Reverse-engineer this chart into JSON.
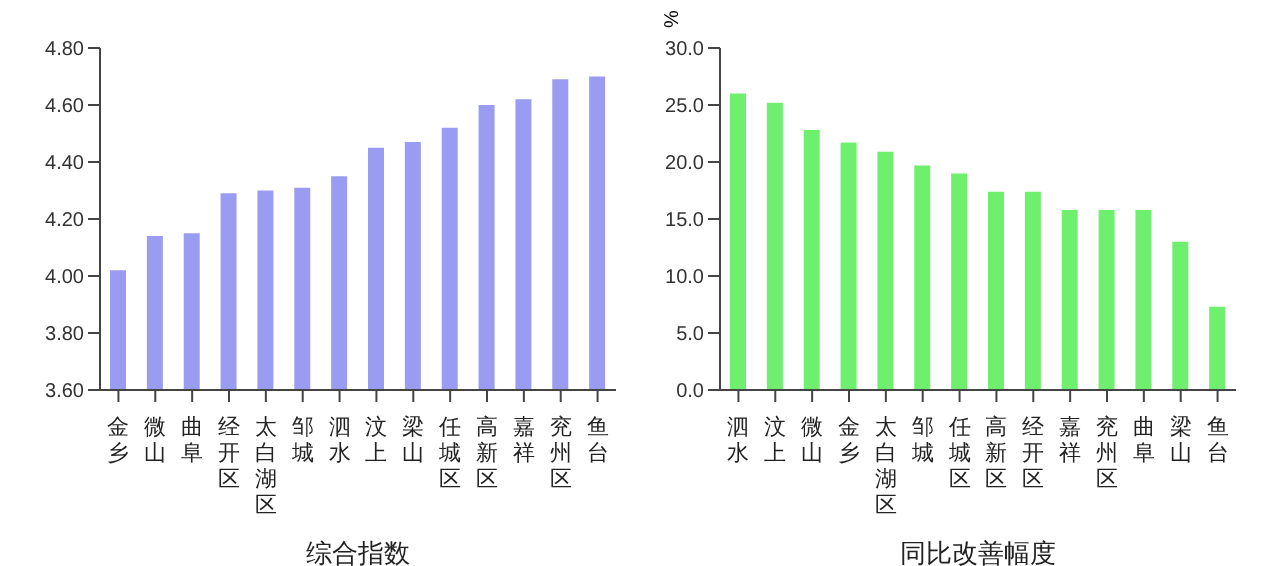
{
  "chart_data": [
    {
      "type": "bar",
      "xlabel": "综合指数",
      "categories": [
        "金乡",
        "微山",
        "曲阜",
        "经开区",
        "太白湖区",
        "邹城",
        "泗水",
        "汶上",
        "梁山",
        "任城区",
        "高新区",
        "嘉祥",
        "兖州区",
        "鱼台"
      ],
      "values": [
        4.02,
        4.14,
        4.15,
        4.29,
        4.3,
        4.31,
        4.35,
        4.45,
        4.47,
        4.52,
        4.6,
        4.62,
        4.69,
        4.7
      ],
      "color": "#9a9cf2",
      "ylim": [
        3.6,
        4.8
      ],
      "yticks": [
        {
          "value": 3.6,
          "label": "3.60"
        },
        {
          "value": 3.8,
          "label": "3.80"
        },
        {
          "value": 4.0,
          "label": "4.00"
        },
        {
          "value": 4.2,
          "label": "4.20"
        },
        {
          "value": 4.4,
          "label": "4.40"
        },
        {
          "value": 4.6,
          "label": "4.60"
        },
        {
          "value": 4.8,
          "label": "4.80"
        }
      ],
      "grid": false,
      "legend": false
    },
    {
      "type": "bar",
      "xlabel": "同比改善幅度",
      "ylabel": "%",
      "categories": [
        "泗水",
        "汶上",
        "微山",
        "金乡",
        "太白湖区",
        "邹城",
        "任城区",
        "高新区",
        "经开区",
        "嘉祥",
        "兖州区",
        "曲阜",
        "梁山",
        "鱼台"
      ],
      "values": [
        26.0,
        25.2,
        22.8,
        21.7,
        20.9,
        19.7,
        19.0,
        17.4,
        17.4,
        15.8,
        15.8,
        15.8,
        13.0,
        7.3
      ],
      "color": "#6ef06e",
      "ylim": [
        0,
        30
      ],
      "yticks": [
        {
          "value": 0,
          "label": "0.0"
        },
        {
          "value": 5,
          "label": "5.0"
        },
        {
          "value": 10,
          "label": "10.0"
        },
        {
          "value": 15,
          "label": "15.0"
        },
        {
          "value": 20,
          "label": "20.0"
        },
        {
          "value": 25,
          "label": "25.0"
        },
        {
          "value": 30,
          "label": "30.0"
        }
      ],
      "grid": false,
      "legend": false
    }
  ]
}
